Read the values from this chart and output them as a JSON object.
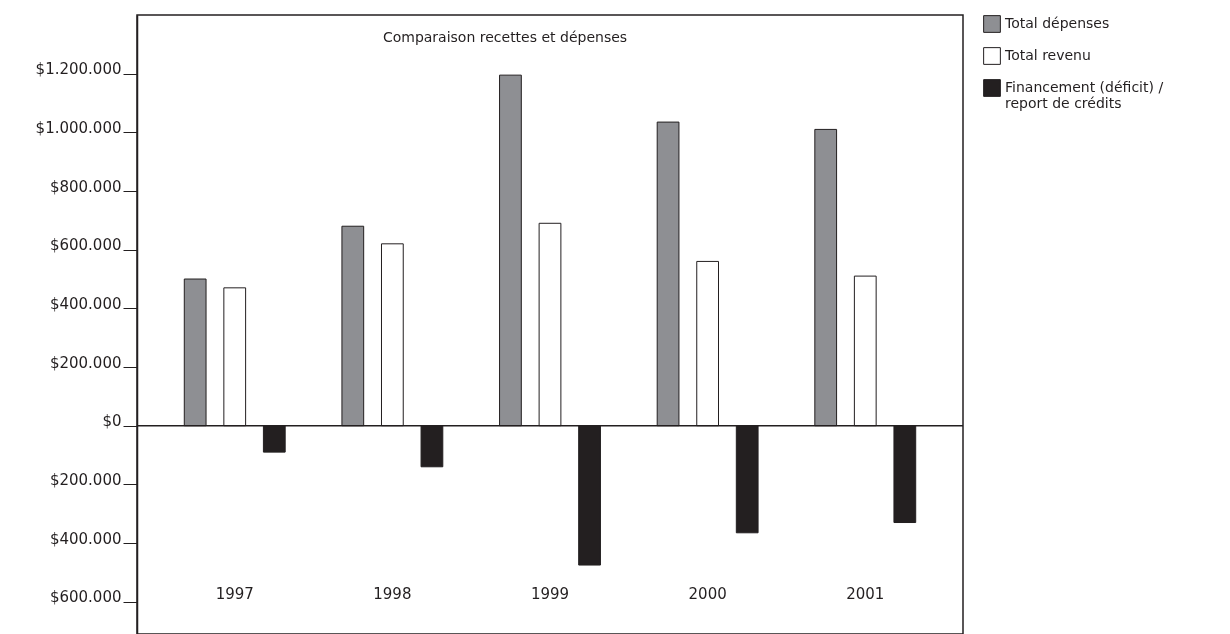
{
  "chart_data": {
    "type": "bar",
    "title": "Comparaison recettes et dépenses",
    "categories": [
      "1997",
      "1998",
      "1999",
      "2000",
      "2001"
    ],
    "series": [
      {
        "name": "Total dépenses",
        "color": "#8e8f93",
        "values": [
          500000,
          680000,
          1195000,
          1035000,
          1010000
        ]
      },
      {
        "name": "Total revenu",
        "color": "#ffffff",
        "values": [
          470000,
          620000,
          690000,
          560000,
          510000
        ]
      },
      {
        "name": "Financement (déficit) / report de crédits",
        "color": "#231f20",
        "values": [
          -90000,
          -140000,
          -475000,
          -365000,
          -330000
        ]
      }
    ],
    "ylim": [
      -710000,
      1400000
    ],
    "yticks": [
      {
        "value": -600000,
        "label": "$600.000"
      },
      {
        "value": -400000,
        "label": "$400.000"
      },
      {
        "value": -200000,
        "label": "$200.000"
      },
      {
        "value": 0,
        "label": "$0"
      },
      {
        "value": 200000,
        "label": "$200.000"
      },
      {
        "value": 400000,
        "label": "$400.000"
      },
      {
        "value": 600000,
        "label": "$600.000"
      },
      {
        "value": 800000,
        "label": "$800.000"
      },
      {
        "value": 1000000,
        "label": "$1.000.000"
      },
      {
        "value": 1200000,
        "label": "$1.200.000"
      }
    ],
    "ref_lines": [
      {
        "axis": "y",
        "value": 0
      }
    ],
    "grid": false,
    "legend": "top right"
  }
}
